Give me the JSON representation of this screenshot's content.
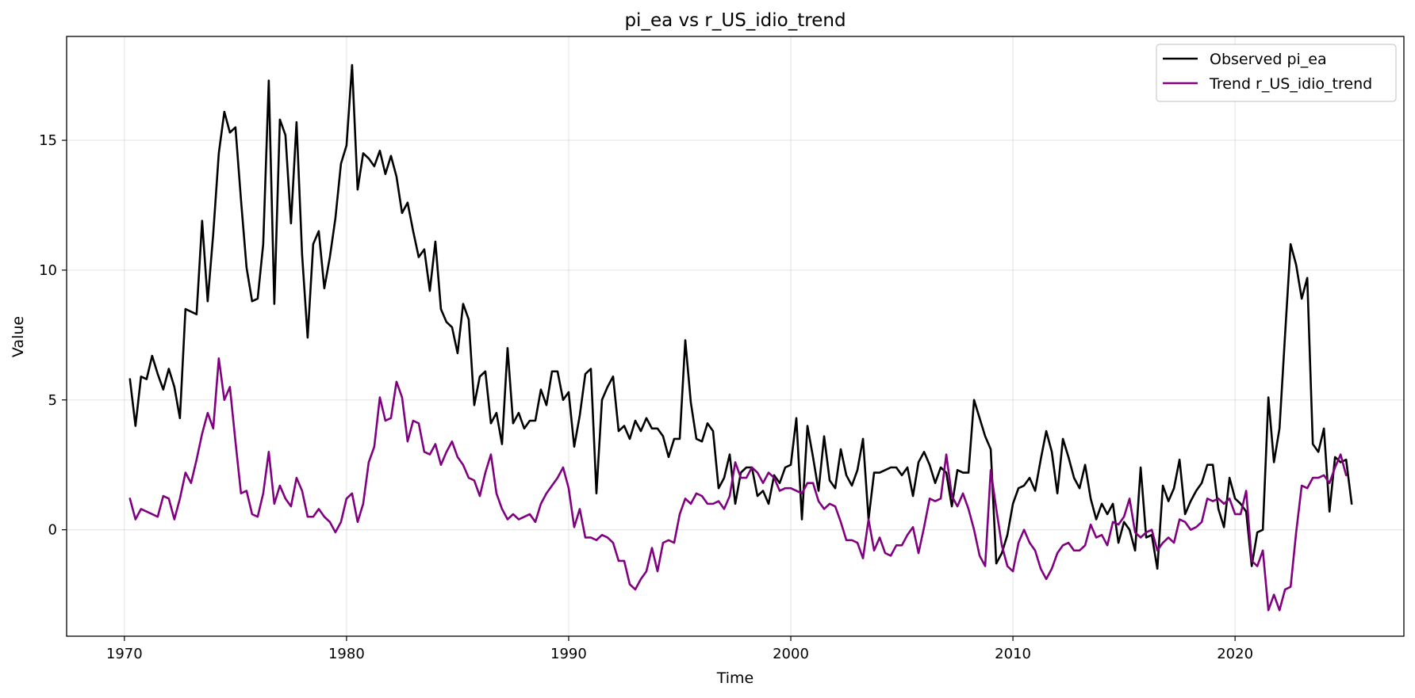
{
  "chart_data": {
    "type": "line",
    "title": "pi_ea vs r_US_idio_trend",
    "xlabel": "Time",
    "ylabel": "Value",
    "xlim": [
      1967.4,
      2027.6
    ],
    "ylim": [
      -4.1,
      19.0
    ],
    "xticks": [
      1970,
      1980,
      1990,
      2000,
      2010,
      2020
    ],
    "yticks": [
      0,
      5,
      10,
      15
    ],
    "grid": true,
    "legend_position": "top-right",
    "series": [
      {
        "name": "Observed pi_ea",
        "color": "#000000",
        "x_start": 1970.25,
        "x_step": 0.25,
        "values": [
          5.8,
          4.0,
          5.9,
          5.8,
          6.7,
          6.0,
          5.4,
          6.2,
          5.5,
          4.3,
          8.5,
          8.4,
          8.3,
          11.9,
          8.8,
          11.4,
          14.5,
          16.1,
          15.3,
          15.5,
          12.7,
          10.1,
          8.8,
          8.9,
          11.0,
          17.3,
          8.7,
          15.8,
          15.2,
          11.8,
          15.7,
          10.6,
          7.4,
          11.0,
          11.5,
          9.3,
          10.5,
          12.0,
          14.1,
          14.8,
          17.9,
          13.1,
          14.5,
          14.3,
          14.0,
          14.6,
          13.7,
          14.4,
          13.6,
          12.2,
          12.6,
          11.5,
          10.5,
          10.8,
          9.2,
          11.1,
          8.5,
          8.0,
          7.8,
          6.8,
          8.7,
          8.1,
          4.8,
          5.9,
          6.1,
          4.1,
          4.5,
          3.3,
          7.0,
          4.1,
          4.5,
          3.9,
          4.2,
          4.2,
          5.4,
          4.8,
          6.1,
          6.1,
          5.0,
          5.3,
          3.2,
          4.4,
          6.0,
          6.2,
          1.4,
          5.0,
          5.5,
          5.9,
          3.8,
          4.0,
          3.5,
          4.2,
          3.8,
          4.3,
          3.9,
          3.9,
          3.6,
          2.8,
          3.5,
          3.5,
          7.3,
          4.9,
          3.5,
          3.4,
          4.1,
          3.8,
          1.6,
          2.0,
          2.9,
          1.0,
          2.2,
          2.4,
          2.4,
          1.3,
          1.5,
          1.0,
          2.1,
          1.8,
          2.4,
          2.5,
          4.3,
          0.4,
          4.0,
          2.8,
          1.5,
          3.6,
          1.9,
          1.6,
          3.1,
          2.1,
          1.7,
          2.3,
          3.5,
          0.4,
          2.2,
          2.2,
          2.3,
          2.4,
          2.4,
          2.1,
          2.4,
          1.3,
          2.6,
          3.0,
          2.5,
          1.8,
          2.4,
          2.2,
          0.9,
          2.3,
          2.2,
          2.2,
          5.0,
          4.3,
          3.6,
          3.1,
          -1.3,
          -0.9,
          -0.2,
          1.0,
          1.6,
          1.7,
          2.0,
          1.5,
          2.7,
          3.8,
          3.0,
          1.4,
          3.5,
          2.8,
          2.0,
          1.6,
          2.5,
          1.2,
          0.4,
          1.0,
          0.6,
          1.0,
          -0.5,
          0.3,
          0.0,
          -0.8,
          2.4,
          -0.3,
          -0.2,
          -1.5,
          1.7,
          1.1,
          1.6,
          2.7,
          0.6,
          1.1,
          1.5,
          1.8,
          2.5,
          2.5,
          0.8,
          0.1,
          2.0,
          1.2,
          1.0,
          0.7,
          -1.4,
          -0.1,
          0.0,
          5.1,
          2.6,
          3.9,
          7.5,
          11.0,
          10.2,
          8.9,
          9.7,
          3.3,
          3.0,
          3.9,
          0.7,
          2.8,
          2.6,
          2.7,
          1.0
        ]
      },
      {
        "name": "Trend r_US_idio_trend",
        "color": "#800080",
        "x_start": 1970.25,
        "x_step": 0.25,
        "values": [
          1.2,
          0.4,
          0.8,
          0.7,
          0.6,
          0.5,
          1.3,
          1.2,
          0.4,
          1.2,
          2.2,
          1.8,
          2.7,
          3.7,
          4.5,
          3.9,
          6.6,
          5.0,
          5.5,
          3.4,
          1.4,
          1.5,
          0.6,
          0.5,
          1.4,
          3.0,
          1.0,
          1.7,
          1.2,
          0.9,
          2.0,
          1.5,
          0.5,
          0.5,
          0.8,
          0.5,
          0.3,
          -0.1,
          0.3,
          1.2,
          1.4,
          0.3,
          1.0,
          2.6,
          3.2,
          5.1,
          4.2,
          4.3,
          5.7,
          5.1,
          3.4,
          4.2,
          4.1,
          3.0,
          2.9,
          3.3,
          2.5,
          3.0,
          3.4,
          2.8,
          2.5,
          2.0,
          1.9,
          1.3,
          2.2,
          2.9,
          1.4,
          0.8,
          0.4,
          0.6,
          0.4,
          0.5,
          0.6,
          0.3,
          1.0,
          1.4,
          1.7,
          2.0,
          2.4,
          1.6,
          0.1,
          0.8,
          -0.3,
          -0.3,
          -0.4,
          -0.2,
          -0.3,
          -0.5,
          -1.2,
          -1.2,
          -2.1,
          -2.3,
          -1.9,
          -1.6,
          -0.7,
          -1.6,
          -0.5,
          -0.4,
          -0.5,
          0.6,
          1.2,
          1.0,
          1.4,
          1.3,
          1.0,
          1.0,
          1.1,
          0.8,
          1.3,
          2.6,
          2.0,
          2.0,
          2.4,
          2.2,
          1.8,
          2.2,
          2.0,
          1.5,
          1.6,
          1.6,
          1.5,
          1.4,
          1.8,
          1.8,
          1.1,
          0.8,
          1.0,
          0.9,
          0.3,
          -0.4,
          -0.4,
          -0.5,
          -1.1,
          0.4,
          -0.8,
          -0.3,
          -0.9,
          -1.0,
          -0.6,
          -0.6,
          -0.2,
          0.1,
          -0.9,
          0.1,
          1.2,
          1.1,
          1.2,
          2.9,
          1.3,
          0.9,
          1.4,
          0.8,
          0.0,
          -1.0,
          -1.4,
          2.3,
          0.8,
          -0.6,
          -1.4,
          -1.6,
          -0.5,
          0.0,
          -0.5,
          -0.8,
          -1.5,
          -1.9,
          -1.5,
          -0.9,
          -0.6,
          -0.5,
          -0.8,
          -0.8,
          -0.6,
          0.2,
          -0.3,
          -0.2,
          -0.6,
          0.3,
          0.2,
          0.5,
          1.2,
          -0.1,
          -0.3,
          -0.1,
          0.0,
          -0.8,
          -0.5,
          -0.3,
          -0.5,
          0.4,
          0.3,
          0.0,
          0.1,
          0.3,
          1.2,
          1.1,
          1.2,
          1.0,
          1.2,
          0.6,
          0.6,
          1.5,
          -1.2,
          -1.4,
          -0.8,
          -3.1,
          -2.5,
          -3.1,
          -2.3,
          -2.2,
          -0.1,
          1.7,
          1.6,
          2.0,
          2.0,
          2.1,
          1.8,
          2.4,
          2.9,
          2.1
        ]
      }
    ]
  }
}
